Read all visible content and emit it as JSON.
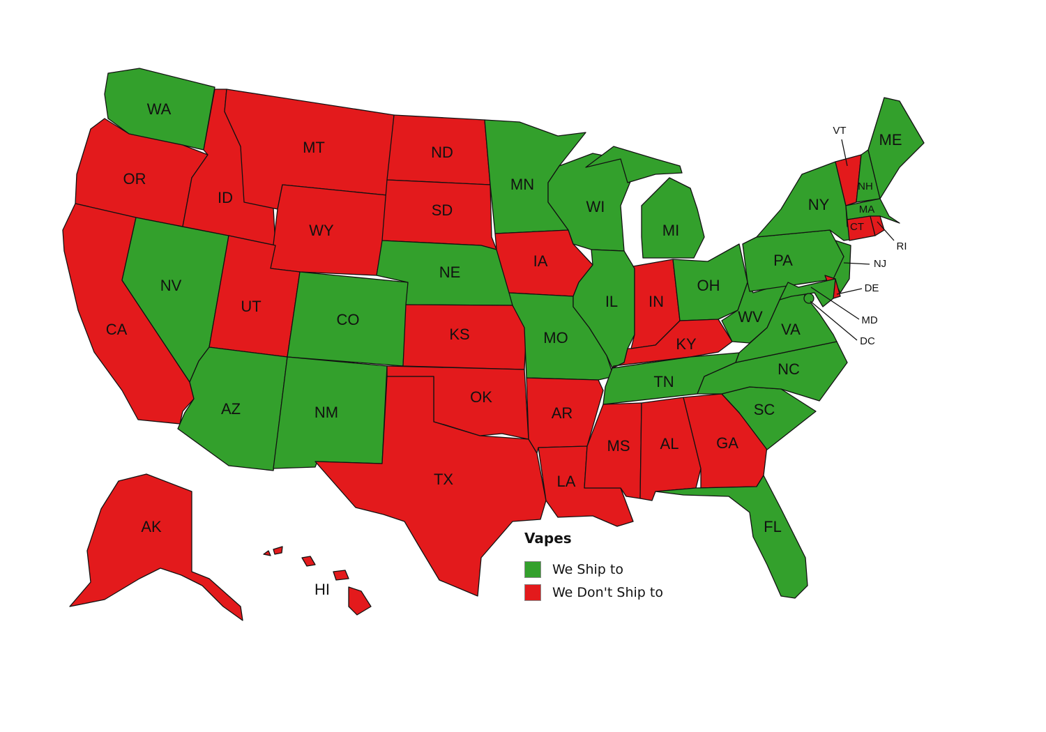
{
  "colors": {
    "ship": "#33a02c",
    "no_ship": "#e31a1c"
  },
  "legend": {
    "title": "Vapes",
    "items": [
      {
        "label": "We Ship to",
        "status": "ship"
      },
      {
        "label": "We Don't Ship to",
        "status": "no_ship"
      }
    ]
  },
  "states": [
    {
      "code": "WA",
      "status": "ship"
    },
    {
      "code": "OR",
      "status": "no_ship"
    },
    {
      "code": "CA",
      "status": "no_ship"
    },
    {
      "code": "NV",
      "status": "ship"
    },
    {
      "code": "ID",
      "status": "no_ship"
    },
    {
      "code": "MT",
      "status": "no_ship"
    },
    {
      "code": "WY",
      "status": "no_ship"
    },
    {
      "code": "UT",
      "status": "no_ship"
    },
    {
      "code": "CO",
      "status": "ship"
    },
    {
      "code": "AZ",
      "status": "ship"
    },
    {
      "code": "NM",
      "status": "ship"
    },
    {
      "code": "ND",
      "status": "no_ship"
    },
    {
      "code": "SD",
      "status": "no_ship"
    },
    {
      "code": "NE",
      "status": "ship"
    },
    {
      "code": "KS",
      "status": "no_ship"
    },
    {
      "code": "OK",
      "status": "no_ship"
    },
    {
      "code": "TX",
      "status": "no_ship"
    },
    {
      "code": "MN",
      "status": "ship"
    },
    {
      "code": "IA",
      "status": "no_ship"
    },
    {
      "code": "MO",
      "status": "ship"
    },
    {
      "code": "AR",
      "status": "no_ship"
    },
    {
      "code": "LA",
      "status": "no_ship"
    },
    {
      "code": "WI",
      "status": "ship"
    },
    {
      "code": "IL",
      "status": "ship"
    },
    {
      "code": "MI",
      "status": "ship"
    },
    {
      "code": "IN",
      "status": "no_ship"
    },
    {
      "code": "OH",
      "status": "ship"
    },
    {
      "code": "KY",
      "status": "no_ship"
    },
    {
      "code": "TN",
      "status": "ship"
    },
    {
      "code": "MS",
      "status": "no_ship"
    },
    {
      "code": "AL",
      "status": "no_ship"
    },
    {
      "code": "GA",
      "status": "no_ship"
    },
    {
      "code": "FL",
      "status": "ship"
    },
    {
      "code": "SC",
      "status": "ship"
    },
    {
      "code": "NC",
      "status": "ship"
    },
    {
      "code": "VA",
      "status": "ship"
    },
    {
      "code": "WV",
      "status": "ship"
    },
    {
      "code": "PA",
      "status": "ship"
    },
    {
      "code": "NY",
      "status": "ship"
    },
    {
      "code": "VT",
      "status": "no_ship"
    },
    {
      "code": "NH",
      "status": "ship"
    },
    {
      "code": "ME",
      "status": "ship"
    },
    {
      "code": "MA",
      "status": "ship"
    },
    {
      "code": "CT",
      "status": "no_ship"
    },
    {
      "code": "RI",
      "status": "no_ship"
    },
    {
      "code": "NJ",
      "status": "ship"
    },
    {
      "code": "DE",
      "status": "no_ship"
    },
    {
      "code": "MD",
      "status": "ship"
    },
    {
      "code": "DC",
      "status": "ship"
    },
    {
      "code": "AK",
      "status": "no_ship"
    },
    {
      "code": "HI",
      "status": "no_ship"
    }
  ]
}
